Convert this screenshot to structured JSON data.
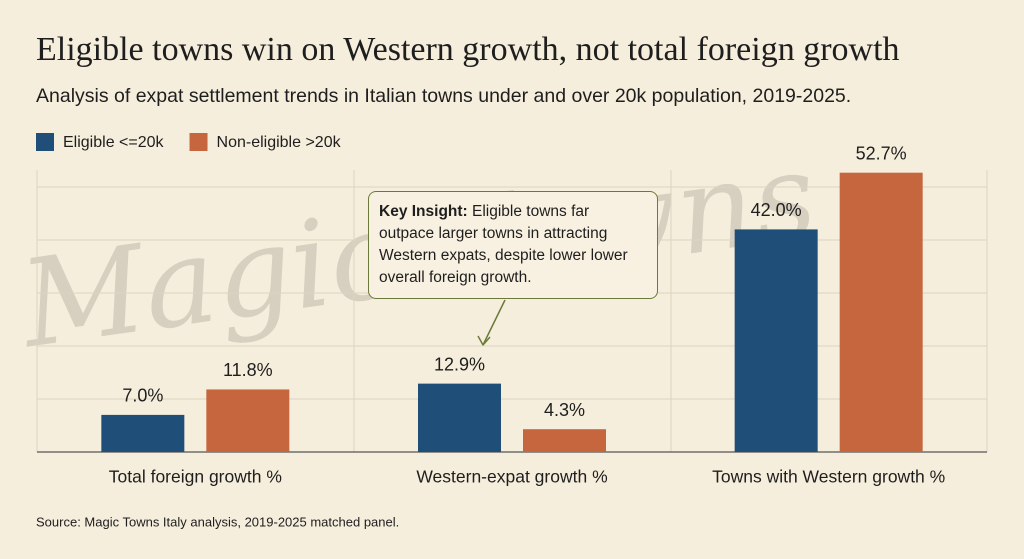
{
  "chart_data": {
    "type": "bar",
    "title": "Eligible towns win on Western growth, not total foreign growth",
    "subtitle": "Analysis of expat settlement trends in Italian towns under and over 20k population, 2019-2025.",
    "watermark": "Magic Towns",
    "categories": [
      "Total foreign growth %",
      "Western-expat growth %",
      "Towns with Western growth %"
    ],
    "series": [
      {
        "name": "Eligible <=20k",
        "color": "#1f4e79",
        "values": [
          7.0,
          12.9,
          42.0
        ],
        "value_labels": [
          "7.0%",
          "12.9%",
          "42.0%"
        ]
      },
      {
        "name": "Non-eligible >20k",
        "color": "#c5663e",
        "values": [
          11.8,
          4.3,
          52.7
        ],
        "value_labels": [
          "11.8%",
          "4.3%",
          "52.7%"
        ]
      }
    ],
    "ylim": [
      0,
      55
    ],
    "yticks": [
      0,
      10,
      20,
      30,
      40,
      50
    ],
    "grid": true,
    "annotation": {
      "title": "Key Insight:",
      "text": "Eligible towns far outpace larger towns in attracting Western expats, despite lower lower overall foreign growth."
    },
    "source": "Source: Magic Towns Italy analysis, 2019-2025 matched panel."
  }
}
